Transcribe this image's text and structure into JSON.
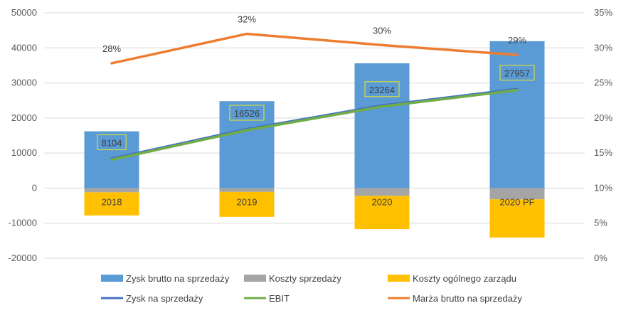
{
  "chart_data": {
    "type": "bar",
    "title": "",
    "categories": [
      "2018",
      "2019",
      "2020",
      "2020 PF"
    ],
    "y_left": {
      "min": -20000,
      "max": 50000,
      "step": 10000,
      "ticks": [
        "-20000",
        "-10000",
        "0",
        "10000",
        "20000",
        "30000",
        "40000",
        "50000"
      ]
    },
    "y_right": {
      "min": 0,
      "max": 35,
      "step": 5,
      "ticks": [
        "0%",
        "5%",
        "10%",
        "15%",
        "20%",
        "25%",
        "30%",
        "35%"
      ]
    },
    "bar_series": [
      {
        "name": "Zysk brutto na sprzedaży",
        "color": "#5b9bd5",
        "values": [
          16200,
          24800,
          35600,
          41900
        ]
      },
      {
        "name": "Koszty sprzedaży",
        "color": "#a5a5a5",
        "values": [
          -1200,
          -1100,
          -2200,
          -3200
        ]
      },
      {
        "name": "Koszty ogólnego zarządu",
        "color": "#ffc000",
        "values": [
          -6600,
          -7100,
          -9500,
          -10900
        ]
      }
    ],
    "line_series": [
      {
        "name": "Zysk na sprzedaży",
        "color": "#4472c4",
        "axis": "left",
        "values": [
          8104,
          16526,
          23264,
          27957
        ]
      },
      {
        "name": "EBIT",
        "color": "#70ad47",
        "axis": "left",
        "values": [
          8104,
          16526,
          23264,
          27957
        ]
      },
      {
        "name": "Marża brutto na sprzedaży",
        "color": "#ed7d31",
        "axis": "right",
        "values": [
          27.8,
          32.0,
          30.4,
          29.0
        ]
      }
    ],
    "data_labels": {
      "ebit": [
        "8104",
        "16526",
        "23264",
        "27957"
      ],
      "margin": [
        "28%",
        "32%",
        "30%",
        "29%"
      ]
    },
    "legend_position": "bottom",
    "grid": true
  },
  "legend": {
    "row1": [
      "Zysk brutto na sprzedaży",
      "Koszty sprzedaży",
      "Koszty ogólnego zarządu"
    ],
    "row2": [
      "Zysk na sprzedaży",
      "EBIT",
      "Marża brutto na sprzedaży"
    ]
  }
}
